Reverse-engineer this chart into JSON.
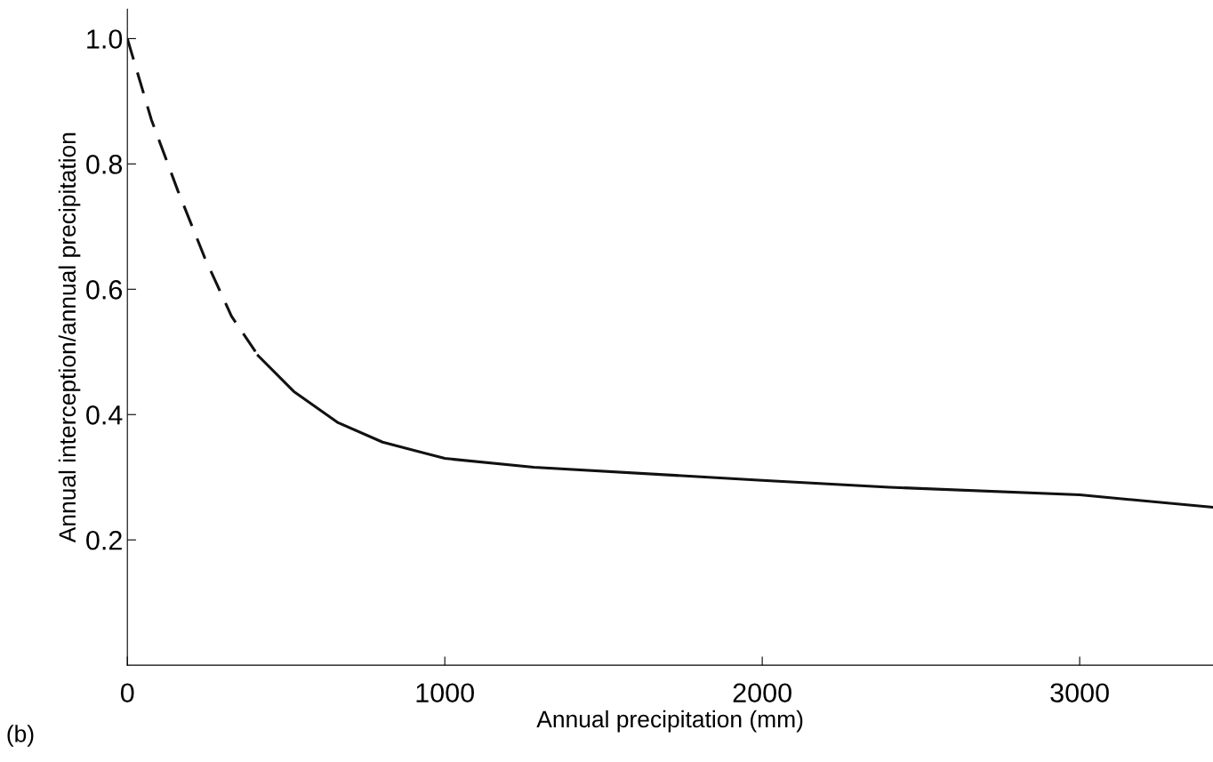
{
  "chart_data": {
    "type": "line",
    "xlabel": "Annual precipitation (mm)",
    "ylabel": "Annual interception/annual precipitation",
    "xlim": [
      0,
      3420
    ],
    "ylim": [
      0,
      1.047
    ],
    "xticks": [
      0,
      1000,
      2000,
      3000
    ],
    "yticks": [
      0.2,
      0.4,
      0.6,
      0.8,
      {
        "value": 1,
        "label": "1.0"
      }
    ],
    "grid": false,
    "legend": false,
    "annotations": [
      "(b)"
    ],
    "series": [
      {
        "color": "#111111",
        "line_style": "dashed",
        "x": [
          0,
          76,
          160,
          244,
          328,
          412
        ],
        "values": [
          1.0,
          0.87,
          0.756,
          0.65,
          0.557,
          0.494
        ]
      },
      {
        "color": "#111111",
        "line_style": "solid",
        "x": [
          412,
          524,
          664,
          804,
          1000,
          1280,
          2000,
          2400,
          3000,
          3420
        ],
        "values": [
          0.494,
          0.437,
          0.387,
          0.356,
          0.33,
          0.316,
          0.295,
          0.284,
          0.272,
          0.252
        ]
      }
    ]
  }
}
